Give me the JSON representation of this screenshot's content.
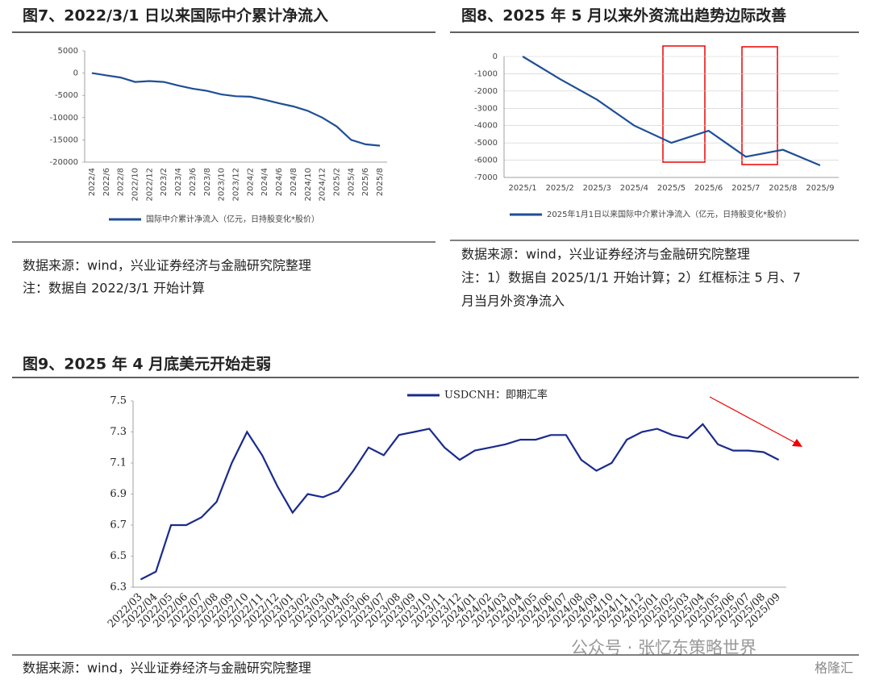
{
  "chart_data": [
    {
      "type": "line",
      "title": "图7、2022/3/1 日以来国际中介累计净流入",
      "categories": [
        "2022/4",
        "2022/6",
        "2022/8",
        "2022/10",
        "2022/12",
        "2023/2",
        "2023/4",
        "2023/6",
        "2023/8",
        "2023/10",
        "2023/12",
        "2024/2",
        "2024/4",
        "2024/6",
        "2024/8",
        "2024/10",
        "2024/12",
        "2025/2",
        "2025/4",
        "2025/6",
        "2025/8"
      ],
      "series": [
        {
          "name": "国际中介累计净流入（亿元，日持股变化*股价）",
          "color": "#1f4e96",
          "values": [
            0,
            -500,
            -1000,
            -2000,
            -1800,
            -2000,
            -2800,
            -3500,
            -4000,
            -4800,
            -5200,
            -5300,
            -6000,
            -6800,
            -7500,
            -8500,
            -10000,
            -12000,
            -15000,
            -16000,
            -16300
          ]
        }
      ],
      "ylim": [
        -20000,
        5000
      ],
      "yticks": [
        -20000,
        -15000,
        -10000,
        -5000,
        0,
        5000
      ],
      "grid": false,
      "source": "数据来源：wind，兴业证券经济与金融研究院整理",
      "note": [
        "注：数据自 2022/3/1 开始计算"
      ]
    },
    {
      "type": "line",
      "title": "图8、2025 年 5 月以来外资流出趋势边际改善",
      "categories": [
        "2025/1",
        "2025/2",
        "2025/3",
        "2025/4",
        "2025/5",
        "2025/6",
        "2025/7",
        "2025/8",
        "2025/9"
      ],
      "series": [
        {
          "name": "2025年1月1日以来国际中介累计净流入（亿元，日持股变化*股价）",
          "color": "#1f4e96",
          "values": [
            0,
            -1300,
            -2500,
            -4000,
            -5000,
            -4300,
            -5800,
            -5400,
            -6300
          ]
        }
      ],
      "ylim": [
        -7000,
        0
      ],
      "yticks": [
        -7000,
        -6000,
        -5000,
        -4000,
        -3000,
        -2000,
        -1000,
        0
      ],
      "grid": true,
      "source": "数据来源：wind，兴业证券经济与金融研究院整理",
      "note": [
        "注：1）数据自 2025/1/1 开始计算；2）红框标注 5 月、7",
        "月当月外资净流入"
      ]
    },
    {
      "type": "line",
      "title": "图9、2025 年 4 月底美元开始走弱",
      "categories": [
        "2022/03",
        "2022/04",
        "2022/05",
        "2022/06",
        "2022/07",
        "2022/08",
        "2022/09",
        "2022/10",
        "2022/11",
        "2022/12",
        "2023/01",
        "2023/02",
        "2023/03",
        "2023/04",
        "2023/05",
        "2023/06",
        "2023/07",
        "2023/08",
        "2023/09",
        "2023/10",
        "2023/11",
        "2023/12",
        "2024/01",
        "2024/02",
        "2024/03",
        "2024/04",
        "2024/05",
        "2024/06",
        "2024/07",
        "2024/08",
        "2024/09",
        "2024/10",
        "2024/11",
        "2024/12",
        "2025/01",
        "2025/02",
        "2025/03",
        "2025/04",
        "2025/05",
        "2025/06",
        "2025/07",
        "2025/08",
        "2025/09"
      ],
      "series": [
        {
          "name": "USDCNH：即期汇率",
          "color": "#1a2b8c",
          "values": [
            6.35,
            6.4,
            6.7,
            6.7,
            6.75,
            6.85,
            7.1,
            7.3,
            7.15,
            6.95,
            6.78,
            6.9,
            6.88,
            6.92,
            7.05,
            7.2,
            7.15,
            7.28,
            7.3,
            7.32,
            7.2,
            7.12,
            7.18,
            7.2,
            7.22,
            7.25,
            7.25,
            7.28,
            7.28,
            7.12,
            7.05,
            7.1,
            7.25,
            7.3,
            7.32,
            7.28,
            7.26,
            7.35,
            7.22,
            7.18,
            7.18,
            7.17,
            7.12
          ]
        }
      ],
      "ylim": [
        6.3,
        7.5
      ],
      "yticks": [
        6.3,
        6.5,
        6.7,
        6.9,
        7.1,
        7.3,
        7.5
      ],
      "grid": false,
      "source": "数据来源：wind，兴业证券经济与金融研究院整理",
      "watermark": "公众号 · 张忆东策略世界",
      "logo": "格隆汇"
    }
  ]
}
